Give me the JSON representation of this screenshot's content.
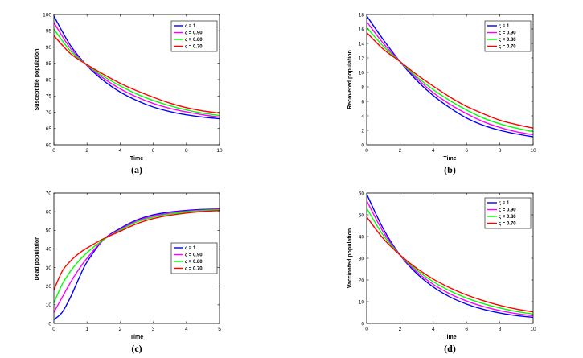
{
  "chart_data": [
    {
      "type": "line",
      "panel_label": "(a)",
      "xlabel": "Time",
      "ylabel": "Susceptible population",
      "xlim": [
        0,
        10
      ],
      "ylim": [
        60,
        100
      ],
      "xticks": [
        "0",
        "2",
        "4",
        "6",
        "8",
        "10"
      ],
      "yticks": [
        "60",
        "65",
        "70",
        "75",
        "80",
        "85",
        "90",
        "95",
        "100"
      ],
      "legend": [
        "ς = 1",
        "ς = 0.90",
        "ς = 0.80",
        "ς = 0.70"
      ],
      "legend_position": "top-right",
      "series": [
        {
          "name": "ς = 1",
          "color": "#0000ff",
          "x": [
            0,
            1,
            2,
            3,
            4,
            5,
            6,
            7,
            8,
            9,
            10
          ],
          "values": [
            99.5,
            90.5,
            84.3,
            79.7,
            76.2,
            73.6,
            71.6,
            70.2,
            69.2,
            68.5,
            68.0
          ]
        },
        {
          "name": "ς = 0.90",
          "color": "#ff00ff",
          "x": [
            0,
            1,
            2,
            3,
            4,
            5,
            6,
            7,
            8,
            9,
            10
          ],
          "values": [
            97.5,
            89.6,
            84.4,
            80.4,
            77.2,
            74.7,
            72.7,
            71.2,
            70.1,
            69.2,
            68.5
          ]
        },
        {
          "name": "ς = 0.80",
          "color": "#00ff00",
          "x": [
            0,
            1,
            2,
            3,
            4,
            5,
            6,
            7,
            8,
            9,
            10
          ],
          "values": [
            95.5,
            88.8,
            84.5,
            81.0,
            78.1,
            75.6,
            73.6,
            72.0,
            70.7,
            69.7,
            69.0
          ]
        },
        {
          "name": "ς = 0.70",
          "color": "#ff0000",
          "x": [
            0,
            1,
            2,
            3,
            4,
            5,
            6,
            7,
            8,
            9,
            10
          ],
          "values": [
            93.5,
            88.0,
            84.6,
            81.6,
            78.9,
            76.6,
            74.6,
            72.8,
            71.4,
            70.4,
            69.7
          ]
        }
      ]
    },
    {
      "type": "line",
      "panel_label": "(b)",
      "xlabel": "Time",
      "ylabel": "Recovered population",
      "xlim": [
        0,
        10
      ],
      "ylim": [
        0,
        18
      ],
      "xticks": [
        "0",
        "2",
        "4",
        "6",
        "8",
        "10"
      ],
      "yticks": [
        "0",
        "2",
        "4",
        "6",
        "8",
        "10",
        "12",
        "14",
        "16",
        "18"
      ],
      "legend": [
        "ς = 1",
        "ς = 0.90",
        "ς = 0.80",
        "ς = 0.70"
      ],
      "legend_position": "top-right",
      "series": [
        {
          "name": "ς = 1",
          "color": "#0000ff",
          "x": [
            0,
            1,
            2,
            3,
            4,
            5,
            6,
            7,
            8,
            9,
            10
          ],
          "values": [
            17.8,
            14.5,
            11.5,
            8.9,
            6.8,
            5.1,
            3.7,
            2.7,
            2.0,
            1.5,
            1.1
          ]
        },
        {
          "name": "ς = 0.90",
          "color": "#ff00ff",
          "x": [
            0,
            1,
            2,
            3,
            4,
            5,
            6,
            7,
            8,
            9,
            10
          ],
          "values": [
            17.0,
            14.0,
            11.5,
            9.2,
            7.2,
            5.6,
            4.3,
            3.2,
            2.4,
            1.8,
            1.4
          ]
        },
        {
          "name": "ς = 0.80",
          "color": "#00ff00",
          "x": [
            0,
            1,
            2,
            3,
            4,
            5,
            6,
            7,
            8,
            9,
            10
          ],
          "values": [
            16.2,
            13.6,
            11.5,
            9.4,
            7.6,
            6.1,
            4.8,
            3.7,
            2.9,
            2.3,
            1.8
          ]
        },
        {
          "name": "ς = 0.70",
          "color": "#ff0000",
          "x": [
            0,
            1,
            2,
            3,
            4,
            5,
            6,
            7,
            8,
            9,
            10
          ],
          "values": [
            15.5,
            13.2,
            11.5,
            9.7,
            8.1,
            6.6,
            5.3,
            4.3,
            3.4,
            2.8,
            2.3
          ]
        }
      ]
    },
    {
      "type": "line",
      "panel_label": "(c)",
      "xlabel": "Time",
      "ylabel": "Dead population",
      "xlim": [
        0,
        5
      ],
      "ylim": [
        0,
        70
      ],
      "xticks": [
        "0",
        "1",
        "2",
        "3",
        "4",
        "5"
      ],
      "yticks": [
        "0",
        "10",
        "20",
        "30",
        "40",
        "50",
        "60",
        "70"
      ],
      "legend": [
        "ς = 1",
        "ς = 0.90",
        "ς = 0.80",
        "ς = 0.70"
      ],
      "legend_position": "lower-right",
      "series": [
        {
          "name": "ς = 1",
          "color": "#0000ff",
          "x": [
            0,
            0.25,
            0.5,
            0.75,
            1,
            1.5,
            2,
            2.5,
            3,
            3.5,
            4,
            4.5,
            5
          ],
          "values": [
            2,
            6,
            14,
            24,
            33,
            45,
            51,
            55.5,
            58.3,
            59.8,
            60.7,
            61.2,
            61.5
          ]
        },
        {
          "name": "ς = 0.90",
          "color": "#ff00ff",
          "x": [
            0,
            0.25,
            0.5,
            0.75,
            1,
            1.5,
            2,
            2.5,
            3,
            3.5,
            4,
            4.5,
            5
          ],
          "values": [
            6,
            14,
            22,
            29,
            35,
            45,
            50.5,
            55,
            57.7,
            59.3,
            60.3,
            60.9,
            61.3
          ]
        },
        {
          "name": "ς = 0.80",
          "color": "#00ff00",
          "x": [
            0,
            0.25,
            0.5,
            0.75,
            1,
            1.5,
            2,
            2.5,
            3,
            3.5,
            4,
            4.5,
            5
          ],
          "values": [
            11,
            21,
            28,
            33.5,
            38,
            45,
            50,
            54.5,
            57.1,
            58.8,
            59.9,
            60.6,
            61.0
          ]
        },
        {
          "name": "ς = 0.70",
          "color": "#ff0000",
          "x": [
            0,
            0.25,
            0.5,
            0.75,
            1,
            1.5,
            2,
            2.5,
            3,
            3.5,
            4,
            4.5,
            5
          ],
          "values": [
            18,
            28,
            33.5,
            37.5,
            40.5,
            45.5,
            49.5,
            53.5,
            56.3,
            58.1,
            59.3,
            60.1,
            60.6
          ]
        }
      ]
    },
    {
      "type": "line",
      "panel_label": "(d)",
      "xlabel": "Time",
      "ylabel": "Vaccinated population",
      "xlim": [
        0,
        10
      ],
      "ylim": [
        0,
        60
      ],
      "xticks": [
        "0",
        "2",
        "4",
        "6",
        "8",
        "10"
      ],
      "yticks": [
        "0",
        "10",
        "20",
        "30",
        "40",
        "50",
        "60"
      ],
      "legend": [
        "ς = 1",
        "ς = 0.90",
        "ς = 0.80",
        "ς = 0.70"
      ],
      "legend_position": "top-right",
      "series": [
        {
          "name": "ς = 1",
          "color": "#0000ff",
          "x": [
            0,
            1,
            2,
            3,
            4,
            5,
            6,
            7,
            8,
            9,
            10
          ],
          "values": [
            59.5,
            43.5,
            31.5,
            23.0,
            16.8,
            12.2,
            8.9,
            6.5,
            4.8,
            3.6,
            2.8
          ]
        },
        {
          "name": "ς = 0.90",
          "color": "#ff00ff",
          "x": [
            0,
            1,
            2,
            3,
            4,
            5,
            6,
            7,
            8,
            9,
            10
          ],
          "values": [
            56.5,
            42.0,
            31.5,
            23.8,
            18.0,
            13.6,
            10.3,
            7.8,
            5.9,
            4.5,
            3.5
          ]
        },
        {
          "name": "ς = 0.80",
          "color": "#00ff00",
          "x": [
            0,
            1,
            2,
            3,
            4,
            5,
            6,
            7,
            8,
            9,
            10
          ],
          "values": [
            53.0,
            40.5,
            31.5,
            24.6,
            19.2,
            15.0,
            11.7,
            9.1,
            7.1,
            5.5,
            4.3
          ]
        },
        {
          "name": "ς = 0.70",
          "color": "#ff0000",
          "x": [
            0,
            1,
            2,
            3,
            4,
            5,
            6,
            7,
            8,
            9,
            10
          ],
          "values": [
            49.0,
            39.0,
            31.5,
            25.4,
            20.4,
            16.4,
            13.1,
            10.5,
            8.3,
            6.6,
            5.3
          ]
        }
      ]
    }
  ]
}
